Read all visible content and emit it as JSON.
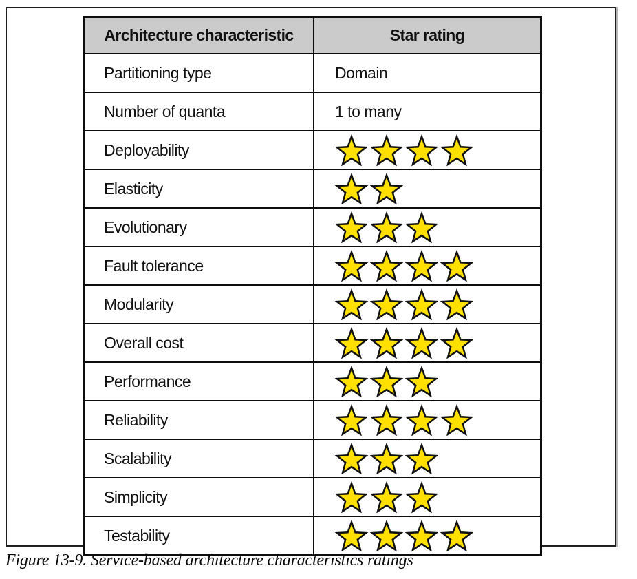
{
  "figure": {
    "caption": "Figure 13-9. Service-based architecture characteristics ratings"
  },
  "table": {
    "headers": [
      "Architecture characteristic",
      "Star rating"
    ],
    "header_bg": "#cbcbcb",
    "star_fill": "#ffe000",
    "star_outline": "#111111",
    "max_stars": 5,
    "rows": [
      {
        "label": "Partitioning type",
        "type": "text",
        "value": "Domain"
      },
      {
        "label": "Number of quanta",
        "type": "text",
        "value": "1 to many"
      },
      {
        "label": "Deployability",
        "type": "stars",
        "stars": 4
      },
      {
        "label": "Elasticity",
        "type": "stars",
        "stars": 2
      },
      {
        "label": "Evolutionary",
        "type": "stars",
        "stars": 3
      },
      {
        "label": "Fault tolerance",
        "type": "stars",
        "stars": 4
      },
      {
        "label": "Modularity",
        "type": "stars",
        "stars": 4
      },
      {
        "label": "Overall cost",
        "type": "stars",
        "stars": 4
      },
      {
        "label": "Performance",
        "type": "stars",
        "stars": 3
      },
      {
        "label": "Reliability",
        "type": "stars",
        "stars": 4
      },
      {
        "label": "Scalability",
        "type": "stars",
        "stars": 3
      },
      {
        "label": "Simplicity",
        "type": "stars",
        "stars": 3
      },
      {
        "label": "Testability",
        "type": "stars",
        "stars": 4
      }
    ]
  }
}
